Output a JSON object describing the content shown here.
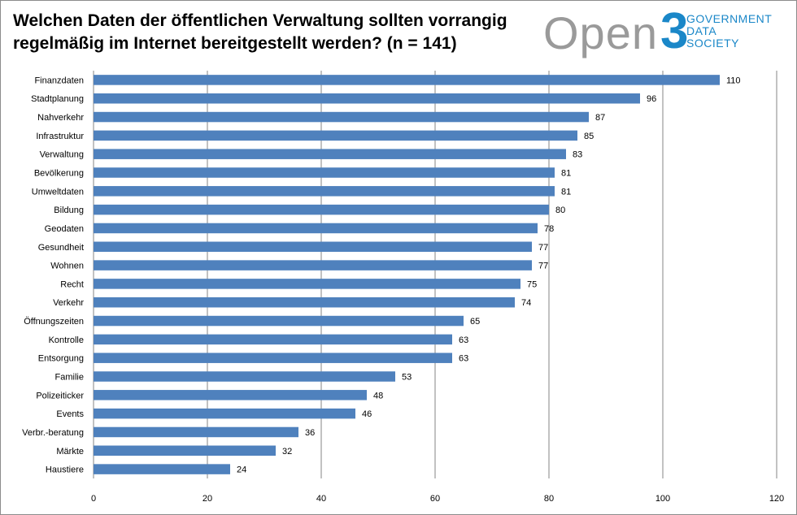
{
  "header": {
    "title": "Welchen Daten der öffentlichen Verwaltung sollten vorrangig regelmäßig im Internet bereitgestellt werden? (n = 141)"
  },
  "logo": {
    "text_open": "Open",
    "text_3": "3",
    "words": [
      "GOVERNMENT",
      "DATA",
      "SOCIETY"
    ],
    "colors": {
      "open": "#9a9a9a",
      "accent": "#1a87c8"
    }
  },
  "chart_data": {
    "type": "bar",
    "orientation": "horizontal",
    "title": "Welchen Daten der öffentlichen Verwaltung sollten vorrangig regelmäßig im Internet bereitgestellt werden? (n = 141)",
    "categories": [
      "Finanzdaten",
      "Stadtplanung",
      "Nahverkehr",
      "Infrastruktur",
      "Verwaltung",
      "Bevölkerung",
      "Umweltdaten",
      "Bildung",
      "Geodaten",
      "Gesundheit",
      "Wohnen",
      "Recht",
      "Verkehr",
      "Öffnungszeiten",
      "Kontrolle",
      "Entsorgung",
      "Familie",
      "Polizeiticker",
      "Events",
      "Verbr.-beratung",
      "Märkte",
      "Haustiere"
    ],
    "values": [
      110,
      96,
      87,
      85,
      83,
      81,
      81,
      80,
      78,
      77,
      77,
      75,
      74,
      65,
      63,
      63,
      53,
      48,
      46,
      36,
      32,
      24
    ],
    "xlim": [
      0,
      120
    ],
    "xticks": [
      0,
      20,
      40,
      60,
      80,
      100,
      120
    ],
    "xlabel": "",
    "ylabel": "",
    "grid": true,
    "bar_color": "#4f81bd",
    "gridline_color": "#868686",
    "data_labels": true,
    "legend": "none"
  }
}
